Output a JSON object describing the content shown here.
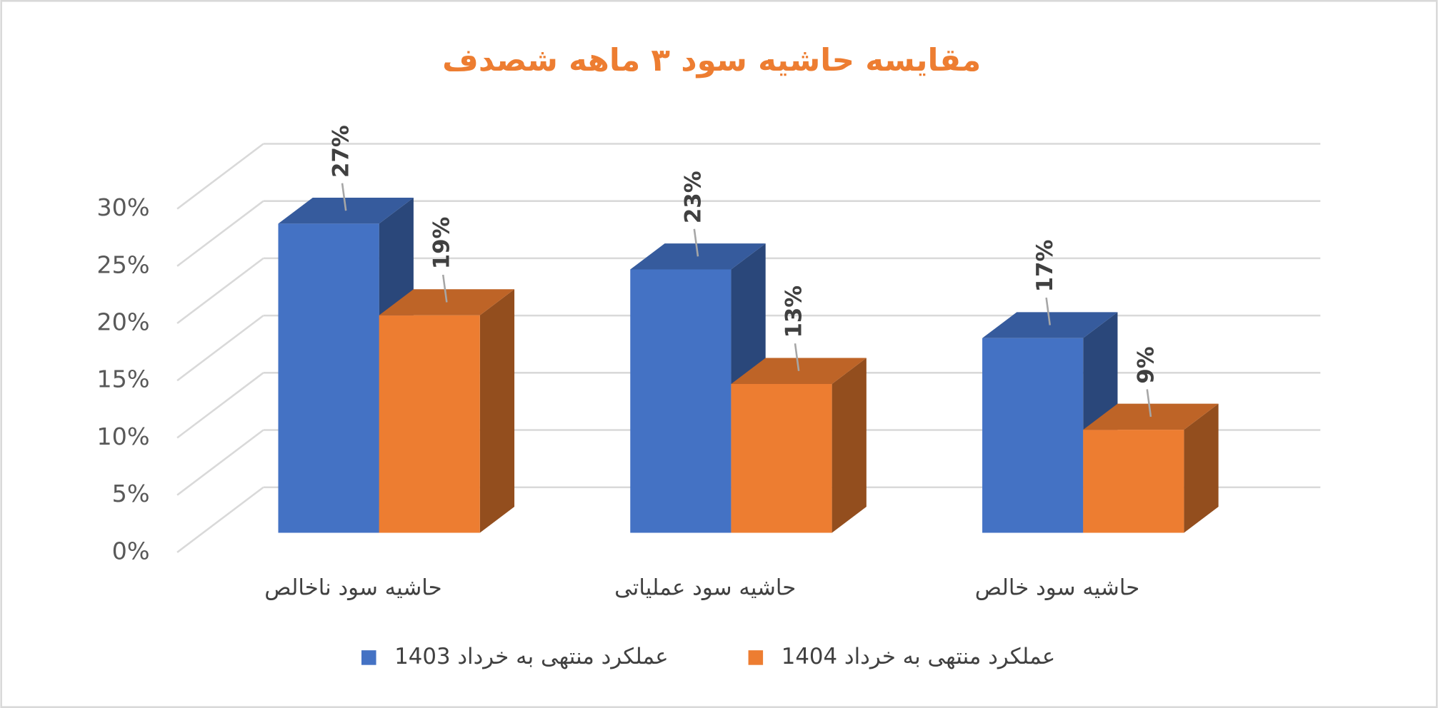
{
  "chart_data": {
    "type": "bar3d",
    "title": "مقایسه حاشیه سود ۳ ماهه شصدف",
    "categories": [
      "حاشیه سود ناخالص",
      "حاشیه سود عملیاتی",
      "حاشیه سود خالص"
    ],
    "series": [
      {
        "name": "عملکرد منتهی به خرداد 1403",
        "color": "#4472c4",
        "values": [
          27,
          23,
          17
        ],
        "value_labels": [
          "27%",
          "23%",
          "17%"
        ]
      },
      {
        "name": "عملکرد منتهی به خرداد 1404",
        "color": "#ed7d31",
        "values": [
          19,
          13,
          9
        ],
        "value_labels": [
          "19%",
          "13%",
          "9%"
        ]
      }
    ],
    "ylim": [
      0,
      30
    ],
    "yticks": [
      {
        "value": 0,
        "label": "0%"
      },
      {
        "value": 5,
        "label": "5%"
      },
      {
        "value": 10,
        "label": "10%"
      },
      {
        "value": 15,
        "label": "15%"
      },
      {
        "value": 20,
        "label": "20%"
      },
      {
        "value": 25,
        "label": "25%"
      },
      {
        "value": 30,
        "label": "30%"
      }
    ],
    "grid": true,
    "legend": "bottom"
  }
}
